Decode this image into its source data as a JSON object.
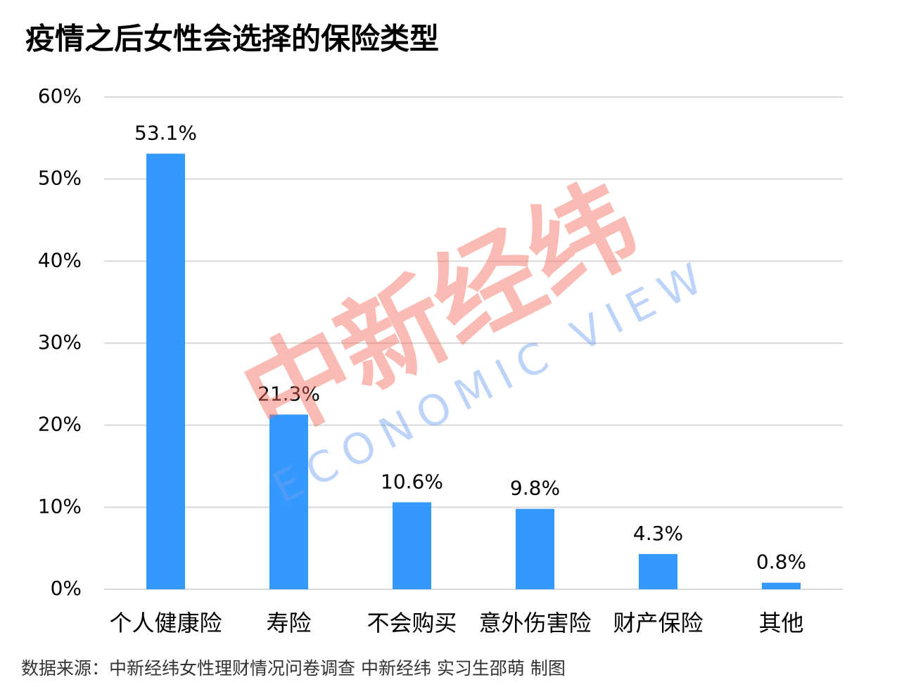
{
  "chart_data": {
    "type": "bar",
    "title": "疫情之后女性会选择的保险类型",
    "categories": [
      "个人健康险",
      "寿险",
      "不会购买",
      "意外伤害险",
      "财产保险",
      "其他"
    ],
    "values": [
      53.1,
      21.3,
      10.6,
      9.8,
      4.3,
      0.8
    ],
    "value_labels": [
      "53.1%",
      "21.3%",
      "10.6%",
      "9.8%",
      "4.3%",
      "0.8%"
    ],
    "color": "#3399ff",
    "ylim": [
      0,
      60
    ],
    "yticks": [
      {
        "value": 0,
        "label": "0%"
      },
      {
        "value": 10,
        "label": "10%"
      },
      {
        "value": 20,
        "label": "20%"
      },
      {
        "value": 30,
        "label": "30%"
      },
      {
        "value": 40,
        "label": "40%"
      },
      {
        "value": 50,
        "label": "50%"
      },
      {
        "value": 60,
        "label": "60%"
      }
    ],
    "grid": true,
    "source": "数据来源：中新经纬女性理财情况问卷调查 中新经纬 实习生邵萌 制图",
    "watermark": {
      "text": "中新经纬",
      "subtext": "ECONOMIC VIEW"
    }
  }
}
